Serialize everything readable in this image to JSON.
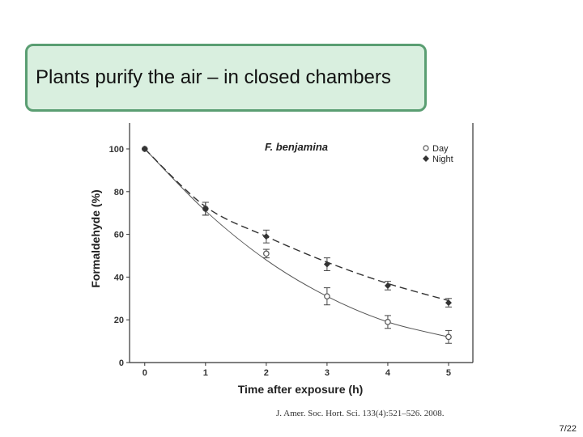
{
  "slide": {
    "title": "Plants purify the air – in closed chambers",
    "citation": "J. Amer. Soc. Hort. Sci. 133(4):521–526. 2008.",
    "page_number": "7/22"
  },
  "chart_data": {
    "type": "line",
    "annotation": "F. benjamina",
    "xlabel": "Time after exposure (h)",
    "ylabel": "Formaldehyde (%)",
    "x": [
      0,
      1,
      2,
      3,
      4,
      5
    ],
    "xlim": [
      -0.25,
      5.4
    ],
    "ylim": [
      0,
      100
    ],
    "xticks": [
      "0",
      "1",
      "2",
      "3",
      "4",
      "5"
    ],
    "yticks": [
      "0",
      "20",
      "40",
      "60",
      "80",
      "100"
    ],
    "legend_position": "top-right",
    "series": [
      {
        "name": "Day",
        "marker": "open-circle",
        "line": "solid",
        "values": [
          100,
          72,
          51,
          31,
          19,
          12
        ],
        "errors": [
          0,
          3,
          2,
          4,
          3,
          3
        ],
        "fit": [
          100,
          71,
          48,
          31,
          19,
          12
        ]
      },
      {
        "name": "Night",
        "marker": "filled-diamond",
        "line": "dashed",
        "values": [
          100,
          72,
          59,
          46,
          36,
          28
        ],
        "errors": [
          0,
          3,
          3,
          3,
          2,
          2
        ],
        "fit": [
          100,
          73,
          59,
          47,
          37,
          29
        ]
      }
    ]
  }
}
